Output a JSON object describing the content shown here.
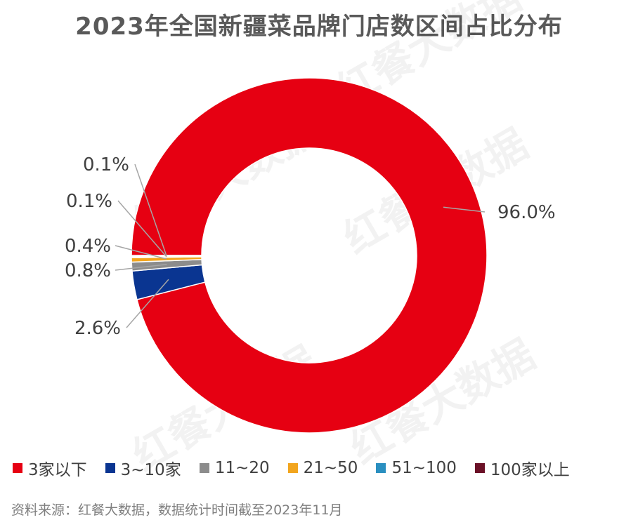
{
  "chart_data": {
    "type": "pie",
    "subtype": "donut",
    "title": "2023年全国新疆菜品牌门店数区间占比分布",
    "categories": [
      "3家以下",
      "3~10家",
      "11~20",
      "21~50",
      "51~100",
      "100家以上"
    ],
    "values": [
      96.0,
      2.6,
      0.8,
      0.4,
      0.1,
      0.1
    ],
    "data_labels": [
      "96.0%",
      "2.6%",
      "0.8%",
      "0.4%",
      "0.1%",
      "0.1%"
    ],
    "colors": [
      "#e60012",
      "#0a3591",
      "#8c8c8c",
      "#f2a51e",
      "#2a8fc0",
      "#6b1127"
    ],
    "legend_position": "bottom"
  },
  "source": "资料来源：红餐大数据，数据统计时间截至2023年11月",
  "watermark": "红餐大数据"
}
